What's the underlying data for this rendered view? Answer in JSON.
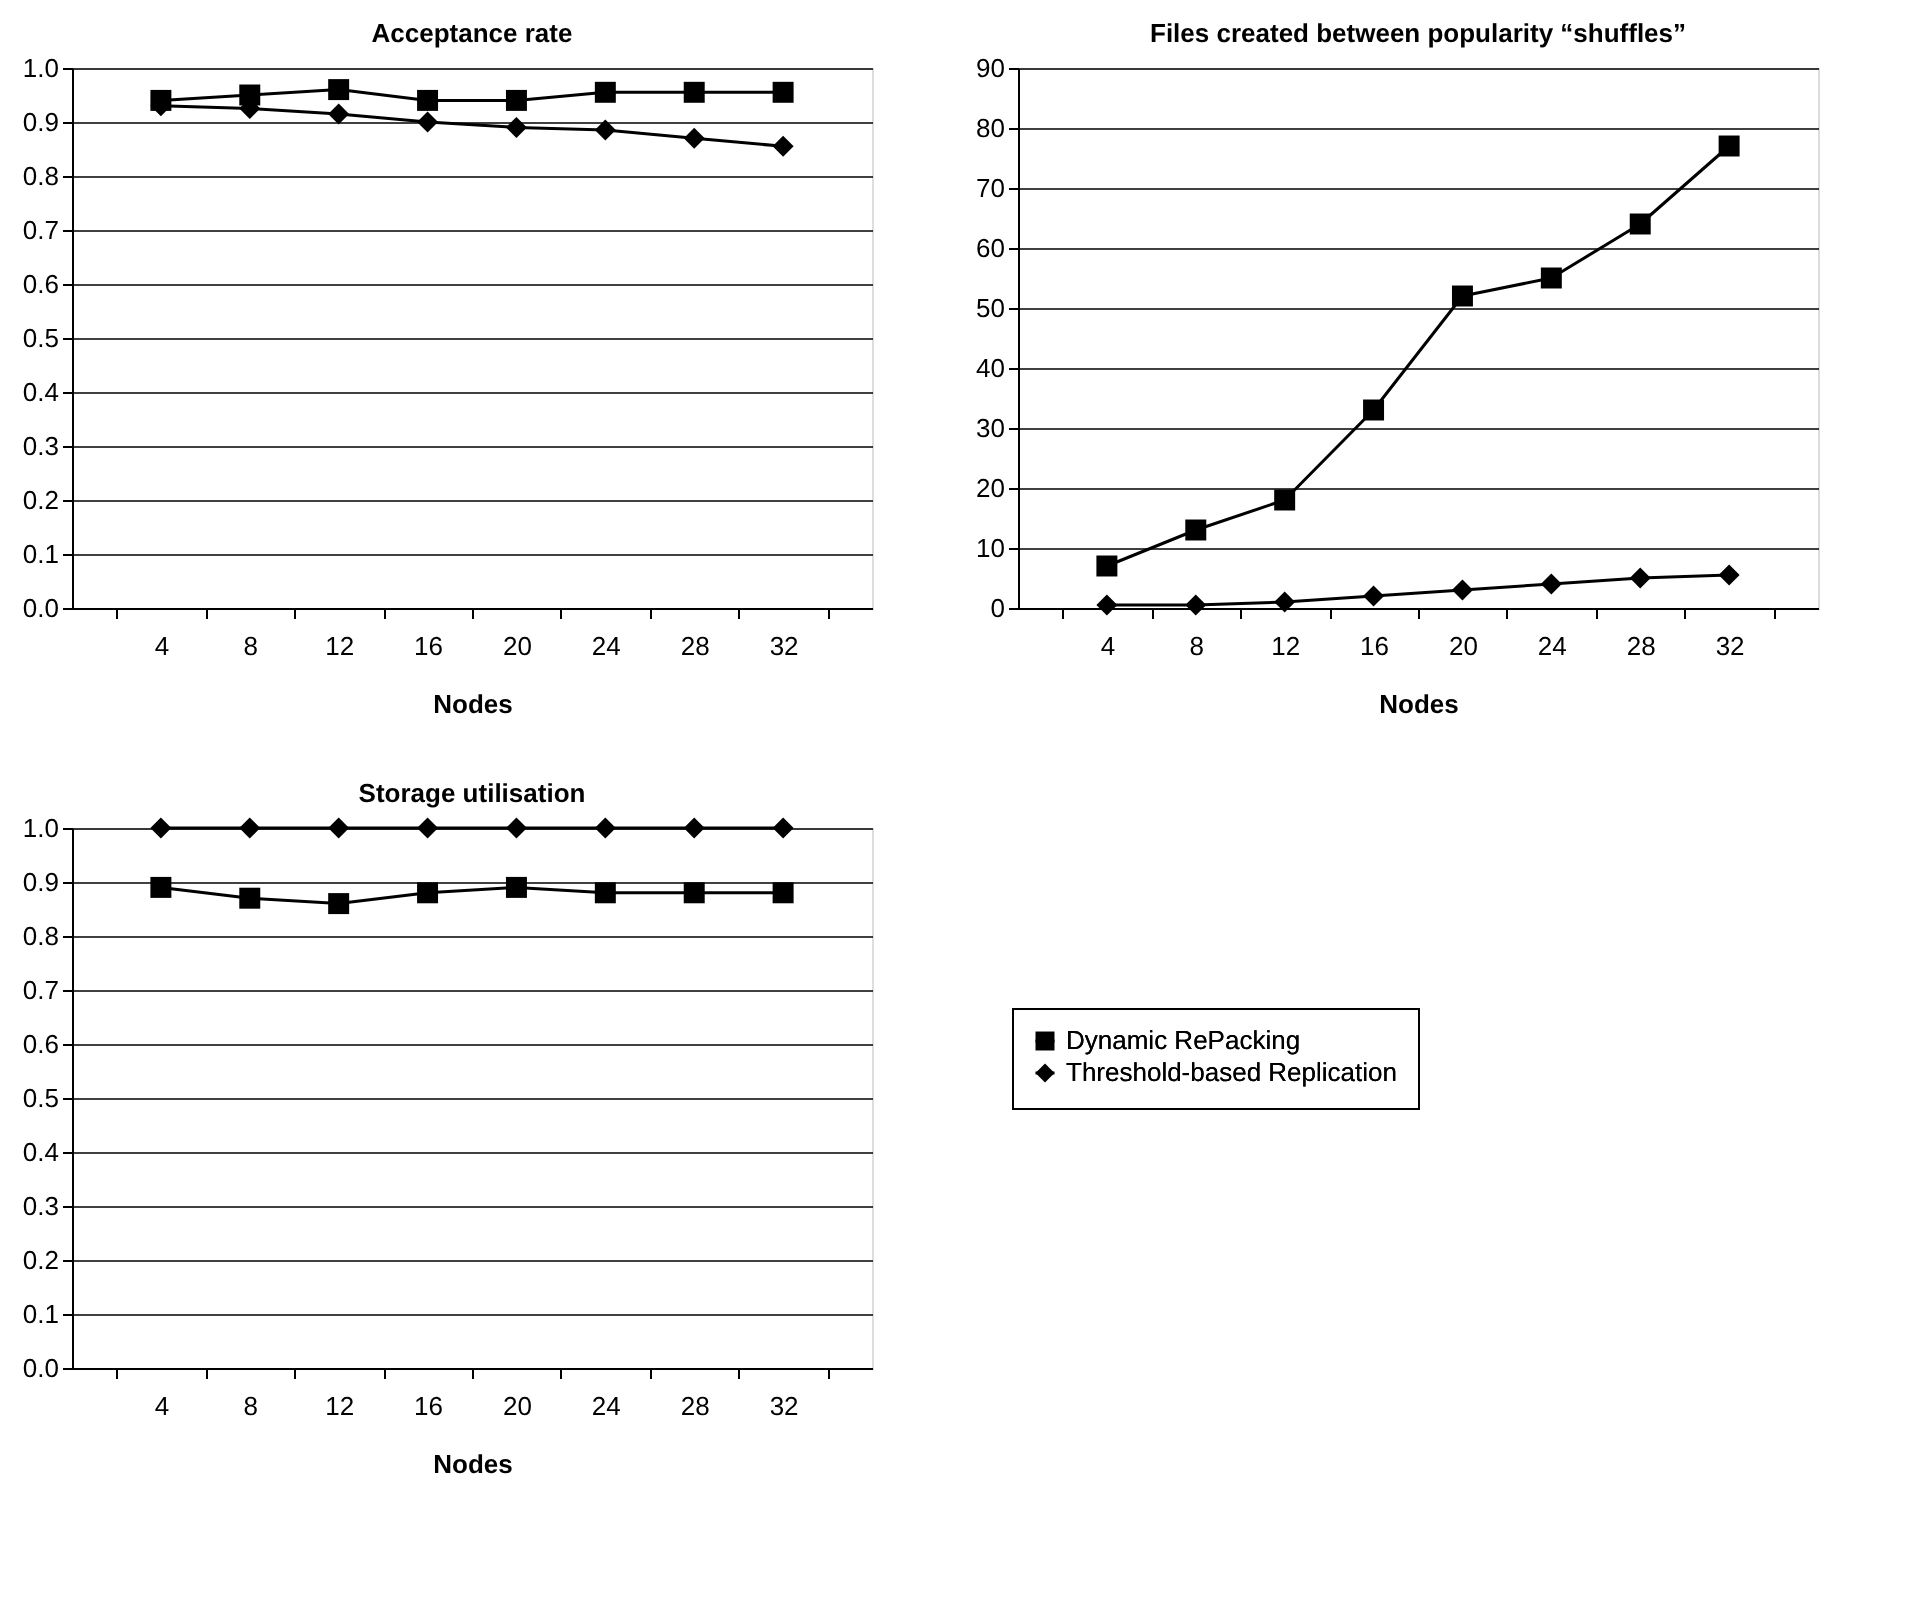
{
  "chart_data": [
    {
      "type": "line",
      "title": "Acceptance rate",
      "xlabel": "Nodes",
      "categories": [
        "4",
        "8",
        "12",
        "16",
        "20",
        "24",
        "28",
        "32"
      ],
      "ylim": [
        0,
        1
      ],
      "yticks": [
        {
          "value": 0,
          "label": "0.0"
        },
        {
          "value": 0.1,
          "label": "0.1"
        },
        {
          "value": 0.2,
          "label": "0.2"
        },
        {
          "value": 0.3,
          "label": "0.3"
        },
        {
          "value": 0.4,
          "label": "0.4"
        },
        {
          "value": 0.5,
          "label": "0.5"
        },
        {
          "value": 0.6,
          "label": "0.6"
        },
        {
          "value": 0.7,
          "label": "0.7"
        },
        {
          "value": 0.8,
          "label": "0.8"
        },
        {
          "value": 0.9,
          "label": "0.9"
        },
        {
          "value": 1,
          "label": "1.0"
        }
      ],
      "grid": "y",
      "legend": false,
      "series": [
        {
          "color": "#000000",
          "marker": "square",
          "values": [
            0.94,
            0.95,
            0.96,
            0.94,
            0.94,
            0.955,
            0.955,
            0.955
          ]
        },
        {
          "color": "#000000",
          "marker": "diamond",
          "values": [
            0.93,
            0.925,
            0.915,
            0.9,
            0.89,
            0.885,
            0.87,
            0.855
          ]
        }
      ]
    },
    {
      "type": "line",
      "title": "Files created between popularity “shuffles”",
      "xlabel": "Nodes",
      "categories": [
        "4",
        "8",
        "12",
        "16",
        "20",
        "24",
        "28",
        "32"
      ],
      "ylim": [
        0,
        90
      ],
      "yticks": [
        0,
        10,
        20,
        30,
        40,
        50,
        60,
        70,
        80,
        90
      ],
      "grid": "y",
      "legend": false,
      "series": [
        {
          "color": "#000000",
          "marker": "square",
          "values": [
            7,
            13,
            18,
            33,
            52,
            55,
            64,
            77
          ]
        },
        {
          "color": "#000000",
          "marker": "diamond",
          "values": [
            0.5,
            0.5,
            1,
            2,
            3,
            4,
            5,
            5.5
          ]
        }
      ]
    },
    {
      "type": "line",
      "title": "Storage utilisation",
      "xlabel": "Nodes",
      "categories": [
        "4",
        "8",
        "12",
        "16",
        "20",
        "24",
        "28",
        "32"
      ],
      "ylim": [
        0,
        1
      ],
      "yticks": [
        {
          "value": 0,
          "label": "0.0"
        },
        {
          "value": 0.1,
          "label": "0.1"
        },
        {
          "value": 0.2,
          "label": "0.2"
        },
        {
          "value": 0.3,
          "label": "0.3"
        },
        {
          "value": 0.4,
          "label": "0.4"
        },
        {
          "value": 0.5,
          "label": "0.5"
        },
        {
          "value": 0.6,
          "label": "0.6"
        },
        {
          "value": 0.7,
          "label": "0.7"
        },
        {
          "value": 0.8,
          "label": "0.8"
        },
        {
          "value": 0.9,
          "label": "0.9"
        },
        {
          "value": 1,
          "label": "1.0"
        }
      ],
      "grid": "y",
      "legend": "right",
      "series": [
        {
          "name": "Dynamic RePacking",
          "color": "#000000",
          "marker": "square",
          "values": [
            0.89,
            0.87,
            0.86,
            0.88,
            0.89,
            0.88,
            0.88,
            0.88
          ]
        },
        {
          "name": "Threshold-based Replication",
          "color": "#000000",
          "marker": "diamond",
          "values": [
            1,
            1,
            1,
            1,
            1,
            1,
            1,
            1
          ]
        }
      ]
    }
  ]
}
